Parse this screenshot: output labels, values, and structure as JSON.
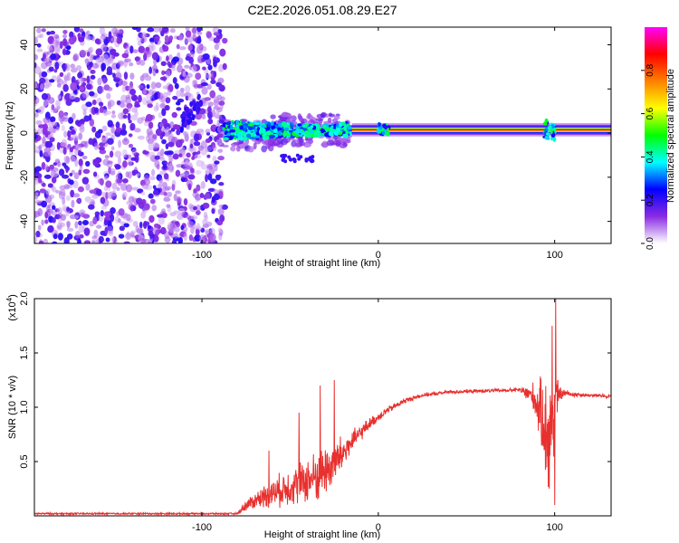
{
  "title": "C2E2.2026.051.08.29.E27",
  "colors": {
    "snr_line": "#e8302e",
    "background": "#ffffff",
    "axis": "#000000"
  },
  "chart_data": [
    {
      "type": "heatmap",
      "name": "spectrogram",
      "xlabel": "Height of straight line (km)",
      "ylabel": "Frequency (Hz)",
      "xlim": [
        -195,
        132
      ],
      "ylim": [
        -50,
        48
      ],
      "xticks": [
        -100,
        0,
        100
      ],
      "xtick_labels": [
        "-100",
        "0",
        "100"
      ],
      "yticks": [
        -40,
        -20,
        0,
        20,
        40
      ],
      "ytick_labels": [
        "-40",
        "-20",
        "0",
        "20",
        "40"
      ],
      "noise_region_km": [
        -195,
        -87
      ],
      "carrier_freq_hz": 1.5,
      "colorbar": {
        "label": "Normalized spectral amplitude",
        "range": [
          0,
          1
        ],
        "ticks": [
          0.0,
          0.2,
          0.4,
          0.6,
          0.8
        ],
        "tick_labels": [
          "0.0",
          "0.2",
          "0.4",
          "0.6",
          "0.8"
        ],
        "colormap": [
          "#ffffff",
          "#8a2be2",
          "#0000ff",
          "#00ffff",
          "#00ff00",
          "#ffff00",
          "#ff8000",
          "#ff0000",
          "#ff00ff"
        ]
      }
    },
    {
      "type": "line",
      "name": "snr",
      "xlabel": "Height of straight line (km)",
      "ylabel": "SNR (10 * v/v)",
      "scale_label": "(x10",
      "scale_exponent": "4",
      "scale_close": ")",
      "xlim": [
        -195,
        132
      ],
      "ylim": [
        0,
        2.0
      ],
      "xticks": [
        -100,
        0,
        100
      ],
      "xtick_labels": [
        "-100",
        "0",
        "100"
      ],
      "yticks": [
        0.5,
        1.0,
        1.5,
        2.0
      ],
      "ytick_labels": [
        "0.5",
        "1.0",
        "1.5",
        "2.0"
      ],
      "envelope": {
        "x": [
          -195,
          -80,
          -75,
          -65,
          -55,
          -45,
          -35,
          -25,
          -15,
          -5,
          5,
          15,
          25,
          40,
          60,
          80,
          88,
          92,
          95,
          97,
          99,
          101,
          103,
          106,
          110,
          120,
          132
        ],
        "mean": [
          0.02,
          0.02,
          0.1,
          0.18,
          0.24,
          0.3,
          0.36,
          0.48,
          0.68,
          0.85,
          0.97,
          1.06,
          1.11,
          1.14,
          1.15,
          1.16,
          1.1,
          0.95,
          0.8,
          0.7,
          0.9,
          1.1,
          1.12,
          1.13,
          1.12,
          1.11,
          1.1
        ],
        "amp": [
          0.01,
          0.01,
          0.06,
          0.12,
          0.18,
          0.22,
          0.28,
          0.26,
          0.12,
          0.06,
          0.04,
          0.03,
          0.02,
          0.02,
          0.02,
          0.02,
          0.15,
          0.35,
          0.55,
          0.75,
          0.65,
          0.25,
          0.08,
          0.04,
          0.03,
          0.02,
          0.02
        ]
      },
      "spikes": [
        {
          "x": -25.0,
          "y": 1.25
        },
        {
          "x": -33.0,
          "y": 1.2
        },
        {
          "x": -45.0,
          "y": 0.95
        },
        {
          "x": -62.0,
          "y": 0.6
        },
        {
          "x": 100.5,
          "y": 2.0
        },
        {
          "x": 98.5,
          "y": 1.75
        },
        {
          "x": 100.0,
          "y": 0.1
        },
        {
          "x": 97.0,
          "y": 0.25
        }
      ]
    }
  ]
}
